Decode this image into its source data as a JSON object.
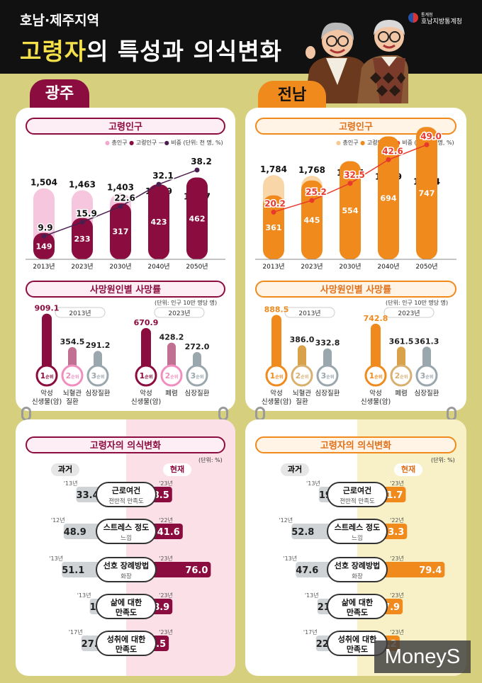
{
  "header": {
    "subtitle": "호남·제주지역",
    "title_highlight": "고령자",
    "title_rest": "의 특성과 의식변화",
    "org_small": "통계청",
    "org_name": "호남지방통계청"
  },
  "colors": {
    "gwangju_accent": "#8b0d3f",
    "gwangju_light": "#f6c6df",
    "jeonnam_accent": "#f08a1c",
    "jeonnam_light": "#f8d6a8",
    "jeonnam_line": "#e8382c",
    "past_bar": "#cfd3d6"
  },
  "regions": [
    {
      "name": "광주",
      "population": {
        "title": "고령인구",
        "legend": [
          "총인구",
          "고령인구",
          "비중"
        ],
        "unit_legend": "(단위: 천 명, %)"
      },
      "death": {
        "title": "사망원인별 사망률",
        "unit": "(단위: 인구 10만 명당 명)",
        "groups": [
          {
            "year": "2013년",
            "items": [
              {
                "value": "909.1",
                "rank": "1",
                "rank_suffix": "순위",
                "label_lines": [
                  "악성",
                  "신생물(암)"
                ]
              },
              {
                "value": "354.5",
                "rank": "2",
                "rank_suffix": "순위",
                "label_lines": [
                  "뇌혈관",
                  "질환"
                ]
              },
              {
                "value": "291.2",
                "rank": "3",
                "rank_suffix": "순위",
                "label_lines": [
                  "심장질환"
                ]
              }
            ]
          },
          {
            "year": "2023년",
            "items": [
              {
                "value": "670.9",
                "rank": "1",
                "rank_suffix": "순위",
                "label_lines": [
                  "악성",
                  "신생물(암)"
                ]
              },
              {
                "value": "428.2",
                "rank": "2",
                "rank_suffix": "순위",
                "label_lines": [
                  "폐렴"
                ]
              },
              {
                "value": "272.0",
                "rank": "3",
                "rank_suffix": "순위",
                "label_lines": [
                  "심장질환"
                ]
              }
            ]
          }
        ]
      },
      "attitude": {
        "title": "고령자의 의식변화",
        "unit": "(단위: %)",
        "past_label": "과거",
        "present_label": "현재",
        "rows": [
          {
            "label_main": "근로여건",
            "label_sub": "전반적 만족도",
            "past_year": "'13년",
            "past": 33.4,
            "present_year": "'23년",
            "present": 28.5
          },
          {
            "label_main": "스트레스 정도",
            "label_sub": "느낌",
            "past_year": "'12년",
            "past": 48.9,
            "present_year": "'22년",
            "present": 41.6
          },
          {
            "label_main": "선호 장례방법",
            "label_sub": "화장",
            "past_year": "'13년",
            "past": 51.1,
            "present_year": "'23년",
            "present": 76.0
          },
          {
            "label_main": "삶에 대한",
            "label_sub": "만족도",
            "past_year": "'13년",
            "past": 16.9,
            "present_year": "'23년",
            "present": 28.9
          },
          {
            "label_main": "성취에 대한",
            "label_sub": "만족도",
            "past_year": "'17년",
            "past": 27.2,
            "present_year": "'23년",
            "present": 24.5
          }
        ]
      }
    },
    {
      "name": "전남",
      "population": {
        "title": "고령인구",
        "legend": [
          "총인구",
          "고령인구",
          "비중"
        ],
        "unit_legend": "(단위: 천 명, %)"
      },
      "death": {
        "title": "사망원인별 사망률",
        "unit": "(단위: 인구 10만 명당 명)",
        "groups": [
          {
            "year": "2013년",
            "items": [
              {
                "value": "888.5",
                "rank": "1",
                "rank_suffix": "순위",
                "label_lines": [
                  "악성",
                  "신생물(암)"
                ]
              },
              {
                "value": "386.0",
                "rank": "2",
                "rank_suffix": "순위",
                "label_lines": [
                  "뇌혈관",
                  "질환"
                ]
              },
              {
                "value": "332.8",
                "rank": "3",
                "rank_suffix": "순위",
                "label_lines": [
                  "심장질환"
                ]
              }
            ]
          },
          {
            "year": "2023년",
            "items": [
              {
                "value": "742.8",
                "rank": "1",
                "rank_suffix": "순위",
                "label_lines": [
                  "악성",
                  "신생물(암)"
                ]
              },
              {
                "value": "361.5",
                "rank": "2",
                "rank_suffix": "순위",
                "label_lines": [
                  "폐렴"
                ]
              },
              {
                "value": "361.3",
                "rank": "3",
                "rank_suffix": "순위",
                "label_lines": [
                  "심장질환"
                ]
              }
            ]
          }
        ]
      },
      "attitude": {
        "title": "고령자의 의식변화",
        "unit": "(단위: %)",
        "past_label": "과거",
        "present_label": "현재",
        "rows": [
          {
            "label_main": "근로여건",
            "label_sub": "전반적 만족도",
            "past_year": "'13년",
            "past": 19.2,
            "present_year": "'23년",
            "present": 31.7
          },
          {
            "label_main": "스트레스 정도",
            "label_sub": "느낌",
            "past_year": "'12년",
            "past": 52.8,
            "present_year": "'22년",
            "present": 33.3
          },
          {
            "label_main": "선호 장례방법",
            "label_sub": "화장",
            "past_year": "'13년",
            "past": 47.6,
            "present_year": "'23년",
            "present": 79.4
          },
          {
            "label_main": "삶에 대한",
            "label_sub": "만족도",
            "past_year": "'13년",
            "past": 21.1,
            "present_year": "'23년",
            "present": 27.9
          },
          {
            "label_main": "성취에 대한",
            "label_sub": "만족도",
            "past_year": "'17년",
            "past": 22.8,
            "present_year": "'23년",
            "present": 24.2
          }
        ]
      }
    }
  ],
  "chart_data": [
    {
      "type": "bar",
      "region": "광주",
      "categories": [
        "2013년",
        "2023년",
        "2030년",
        "2040년",
        "2050년"
      ],
      "series": [
        {
          "name": "총인구",
          "values": [
            1504,
            1463,
            1403,
            1319,
            1207
          ]
        },
        {
          "name": "고령인구",
          "values": [
            149,
            233,
            317,
            423,
            462
          ]
        },
        {
          "name": "비중",
          "values": [
            9.9,
            15.9,
            22.6,
            32.1,
            38.2
          ]
        }
      ]
    },
    {
      "type": "bar",
      "region": "전남",
      "categories": [
        "2013년",
        "2023년",
        "2030년",
        "2040년",
        "2050년"
      ],
      "series": [
        {
          "name": "총인구",
          "values": [
            1784,
            1768,
            1707,
            1629,
            1524
          ]
        },
        {
          "name": "고령인구",
          "values": [
            361,
            445,
            554,
            694,
            747
          ]
        },
        {
          "name": "비중",
          "values": [
            20.2,
            25.2,
            32.5,
            42.6,
            49.0
          ]
        }
      ]
    }
  ],
  "watermark": "MoneyS"
}
